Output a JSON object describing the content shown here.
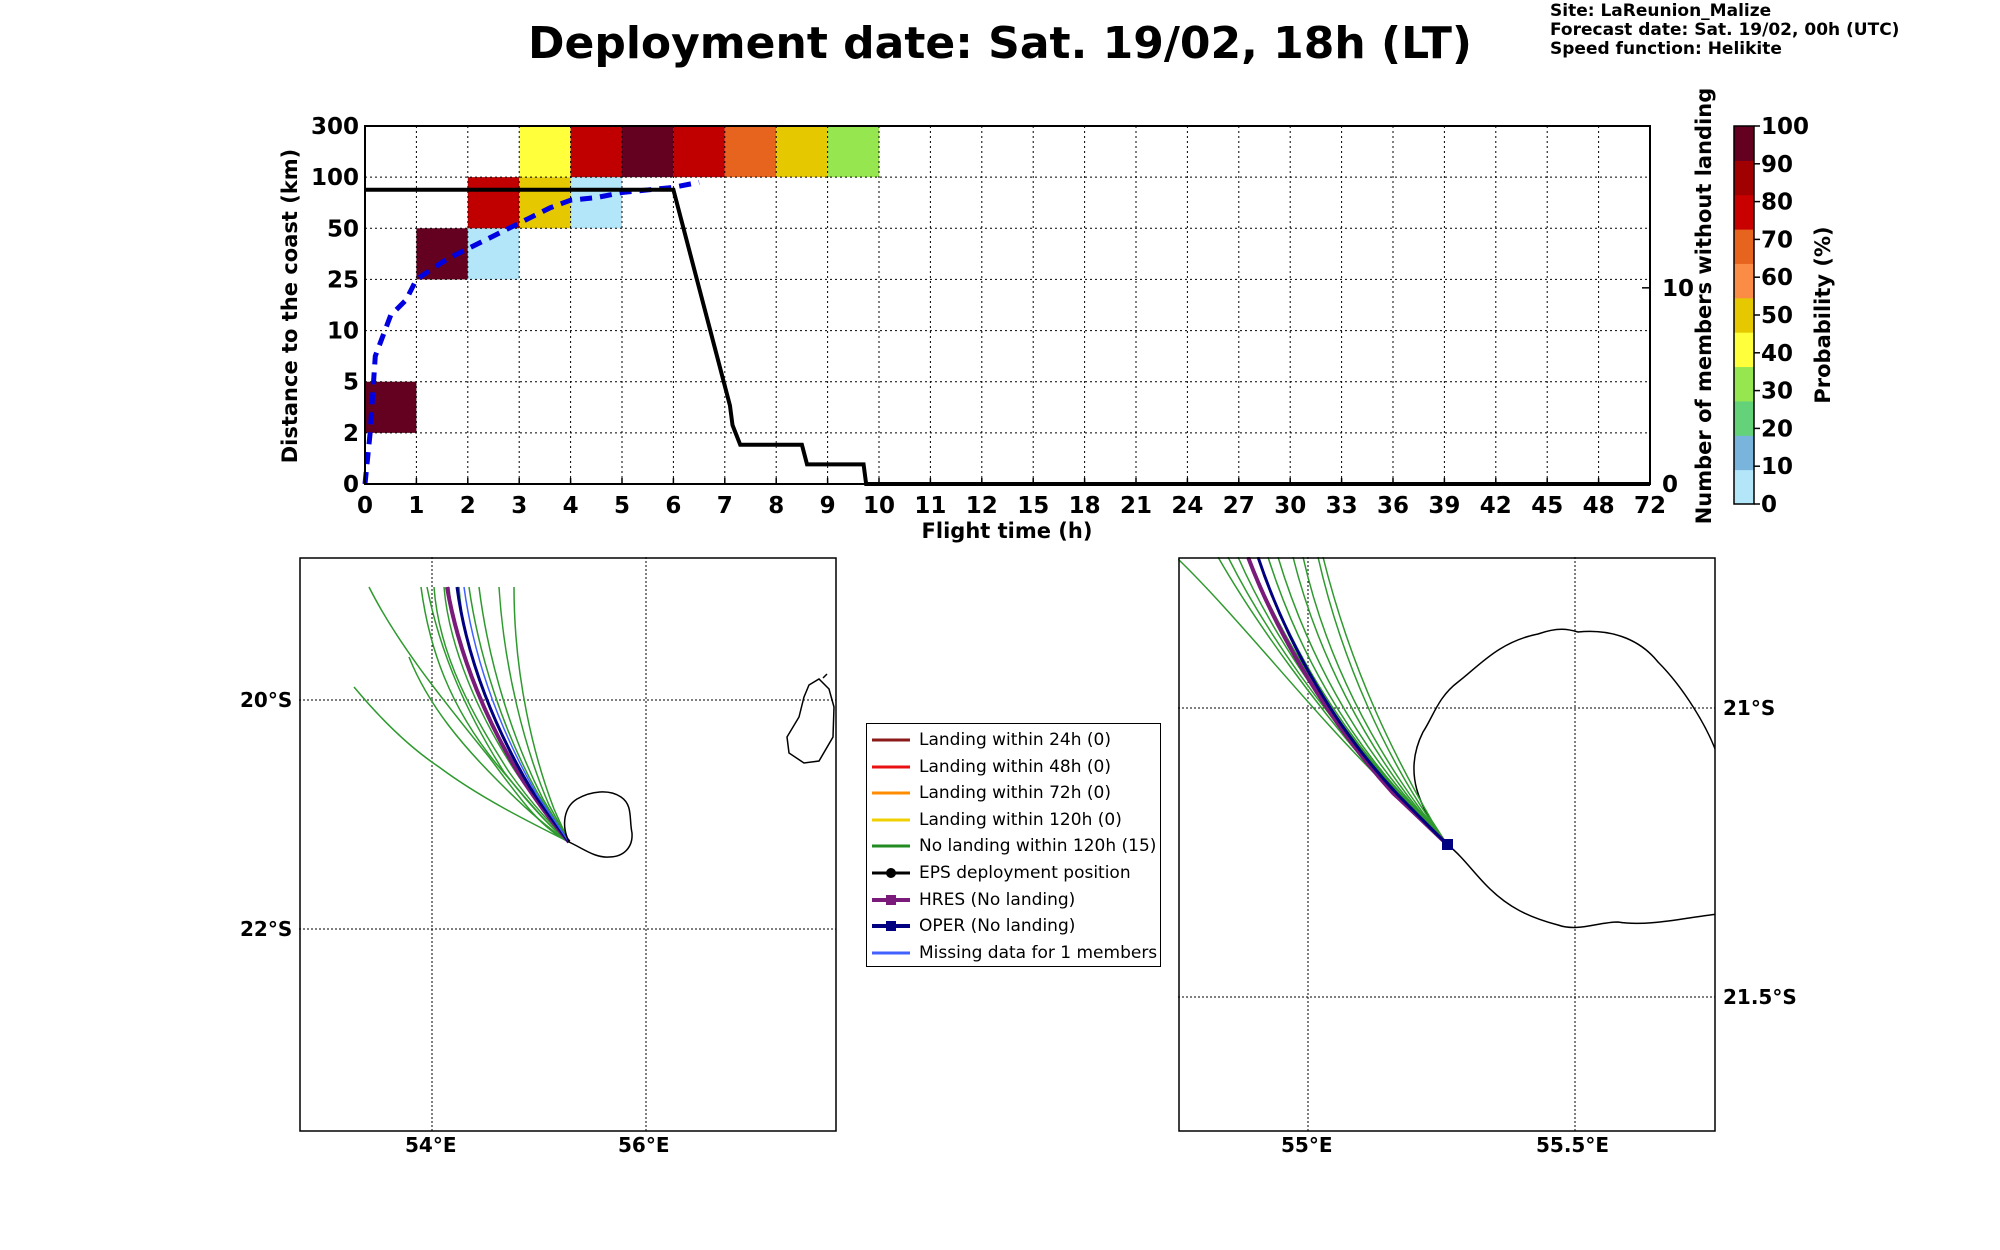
{
  "header": {
    "title": "Deployment date: Sat. 19/02, 18h (LT)",
    "site": "Site: LaReunion_Malize",
    "forecast_date": "Forecast date: Sat. 19/02, 00h (UTC)",
    "speed_function": "Speed function: Helikite"
  },
  "chart_data": [
    {
      "type": "heatmap",
      "xlabel": "Flight time (h)",
      "ylabel": "Distance to the coast (km)",
      "y2label": "Number of members without landing",
      "colorbar_label": "Probability (%)",
      "x_ticks": [
        "0",
        "1",
        "2",
        "3",
        "4",
        "5",
        "6",
        "7",
        "8",
        "9",
        "10",
        "11",
        "12",
        "15",
        "18",
        "21",
        "24",
        "27",
        "30",
        "33",
        "36",
        "39",
        "42",
        "45",
        "48",
        "72"
      ],
      "y_ticks": [
        "0",
        "2",
        "5",
        "10",
        "25",
        "50",
        "100",
        "300"
      ],
      "y2_ticks": [
        "0",
        "10"
      ],
      "y2_range": [
        0,
        18.25
      ],
      "colorbar_ticks": [
        "0",
        "10",
        "20",
        "30",
        "40",
        "50",
        "60",
        "70",
        "80",
        "90",
        "100"
      ],
      "colorbar_colors": [
        "#b4e6fa",
        "#78b4dc",
        "#64d278",
        "#96e650",
        "#ffff3c",
        "#e6c800",
        "#fa8c46",
        "#e6641e",
        "#c80000",
        "#a00000",
        "#640020"
      ],
      "cells": [
        {
          "x": 0,
          "y": 1,
          "color": "#640020"
        },
        {
          "x": 1,
          "y": 4,
          "color": "#640020"
        },
        {
          "x": 2,
          "y": 4,
          "color": "#b4e6fa"
        },
        {
          "x": 2,
          "y": 5,
          "color": "#c00000"
        },
        {
          "x": 3,
          "y": 5,
          "color": "#e6c800"
        },
        {
          "x": 3,
          "y": 6,
          "color": "#ffff3c"
        },
        {
          "x": 4,
          "y": 5,
          "color": "#b4e6fa"
        },
        {
          "x": 4,
          "y": 6,
          "color": "#c00000"
        },
        {
          "x": 5,
          "y": 6,
          "color": "#640020"
        },
        {
          "x": 6,
          "y": 6,
          "color": "#c00000"
        },
        {
          "x": 7,
          "y": 6,
          "color": "#e6641e"
        },
        {
          "x": 8,
          "y": 6,
          "color": "#e6c800"
        },
        {
          "x": 9,
          "y": 6,
          "color": "#96e650"
        }
      ],
      "members_without_landing": {
        "x": [
          0,
          6.0,
          6.1,
          6.2,
          6.3,
          6.4,
          6.5,
          6.6,
          6.7,
          6.8,
          6.9,
          7.0,
          7.1,
          7.15,
          7.3,
          8.5,
          8.6,
          9.7,
          9.75,
          72
        ],
        "y": [
          15,
          15,
          14,
          13,
          12,
          11,
          10,
          9,
          8,
          7,
          6,
          5,
          4,
          3,
          2,
          2,
          1,
          1,
          0,
          0
        ]
      },
      "median_distance": {
        "x": [
          0,
          0.1,
          0.2,
          0.5,
          0.8,
          1.0,
          1.3,
          1.6,
          2.0,
          2.4,
          2.8,
          3.2,
          3.6,
          4.0,
          4.5,
          5.0,
          5.5,
          6.0,
          6.5
        ],
        "y": [
          0,
          1.0,
          2.5,
          3.3,
          3.6,
          4.0,
          4.2,
          4.4,
          4.6,
          4.8,
          5.0,
          5.2,
          5.4,
          5.55,
          5.6,
          5.7,
          5.75,
          5.8,
          5.9
        ]
      }
    },
    {
      "type": "map",
      "lat_ticks": [
        "20°S",
        "22°S"
      ],
      "lon_ticks": [
        "54°E",
        "56°E"
      ]
    },
    {
      "type": "map",
      "lat_ticks": [
        "21°S",
        "21.5°S"
      ],
      "lon_ticks": [
        "55°E",
        "55.5°E"
      ]
    }
  ],
  "legend": [
    {
      "label": "Landing within 24h (0)",
      "color": "#8b1a1a",
      "marker": ""
    },
    {
      "label": "Landing within 48h (0)",
      "color": "#e81010",
      "marker": ""
    },
    {
      "label": "Landing within 72h (0)",
      "color": "#ff8c00",
      "marker": ""
    },
    {
      "label": "Landing within 120h (0)",
      "color": "#f0d000",
      "marker": ""
    },
    {
      "label": "No landing within 120h (15)",
      "color": "#228b22",
      "marker": ""
    },
    {
      "label": "EPS deployment position",
      "color": "#000000",
      "marker": "circle"
    },
    {
      "label": "HRES (No landing)",
      "color": "#7a1a7a",
      "marker": "square"
    },
    {
      "label": "OPER (No landing)",
      "color": "#000080",
      "marker": "square"
    },
    {
      "label": "Missing data for 1 members",
      "color": "#4060ff",
      "marker": ""
    }
  ]
}
